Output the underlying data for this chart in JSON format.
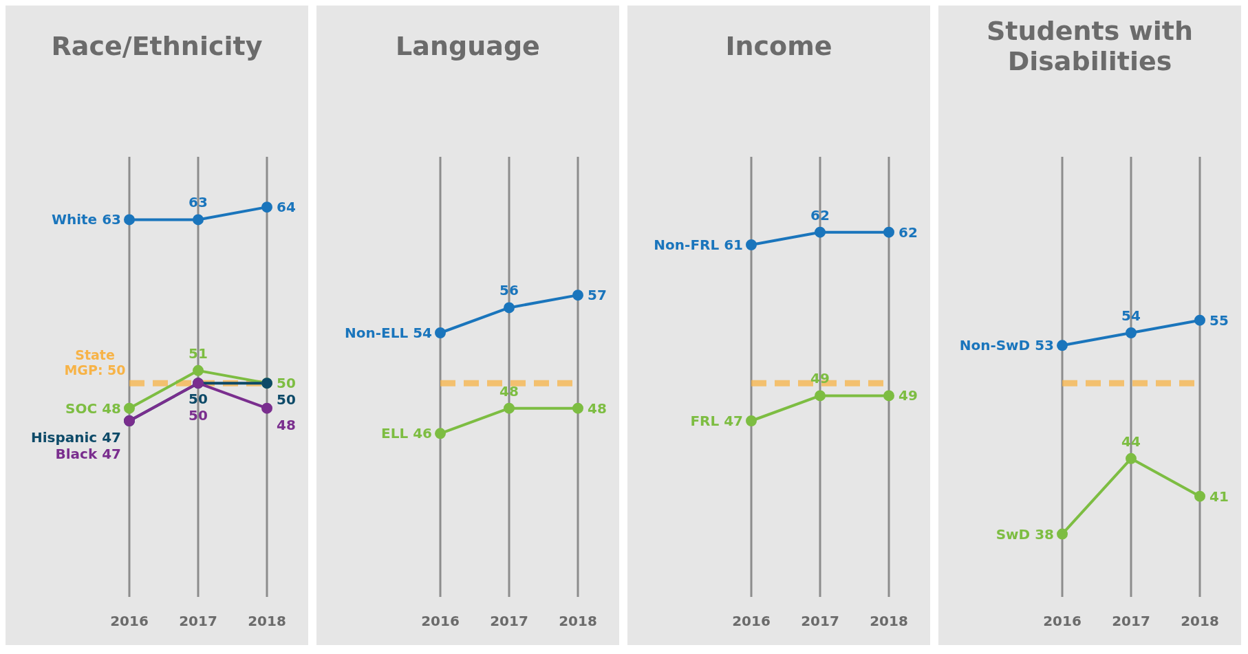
{
  "chart_data": [
    {
      "type": "line",
      "title": "Race/Ethnicity",
      "categories": [
        "2016",
        "2017",
        "2018"
      ],
      "data_labels": true,
      "grid": "x",
      "marker": "circle",
      "line_style": "solid",
      "ref_lines": [
        {
          "axis": "y",
          "value": 50,
          "label": "State MGP: 50",
          "color": "#f7b347",
          "line_style": "dashed"
        }
      ],
      "series": [
        {
          "name": "White",
          "color": "#1a75bc",
          "values": [
            63,
            63,
            64
          ]
        },
        {
          "name": "SOC",
          "color": "#7dbd42",
          "values": [
            48,
            51,
            50
          ]
        },
        {
          "name": "Hispanic",
          "color": "#0d4a68",
          "values": [
            47,
            50,
            50
          ]
        },
        {
          "name": "Black",
          "color": "#7a2e8e",
          "values": [
            47,
            50,
            48
          ]
        }
      ]
    },
    {
      "type": "line",
      "title": "Language",
      "categories": [
        "2016",
        "2017",
        "2018"
      ],
      "data_labels": true,
      "grid": "x",
      "marker": "circle",
      "line_style": "solid",
      "ref_lines": [
        {
          "axis": "y",
          "value": 50,
          "label": null,
          "color": "#f7b347",
          "line_style": "dashed"
        }
      ],
      "series": [
        {
          "name": "Non-ELL",
          "color": "#1a75bc",
          "values": [
            54,
            56,
            57
          ]
        },
        {
          "name": "ELL",
          "color": "#7dbd42",
          "values": [
            46,
            48,
            48
          ]
        }
      ]
    },
    {
      "type": "line",
      "title": "Income",
      "categories": [
        "2016",
        "2017",
        "2018"
      ],
      "data_labels": true,
      "grid": "x",
      "marker": "circle",
      "line_style": "solid",
      "ref_lines": [
        {
          "axis": "y",
          "value": 50,
          "label": null,
          "color": "#f7b347",
          "line_style": "dashed"
        }
      ],
      "series": [
        {
          "name": "Non-FRL",
          "color": "#1a75bc",
          "values": [
            61,
            62,
            62
          ]
        },
        {
          "name": "FRL",
          "color": "#7dbd42",
          "values": [
            47,
            49,
            49
          ]
        }
      ]
    },
    {
      "type": "line",
      "title": "Students with Disabilities",
      "categories": [
        "2016",
        "2017",
        "2018"
      ],
      "data_labels": true,
      "grid": "x",
      "marker": "circle",
      "line_style": "solid",
      "ref_lines": [
        {
          "axis": "y",
          "value": 50,
          "label": null,
          "color": "#f7b347",
          "line_style": "dashed"
        }
      ],
      "series": [
        {
          "name": "Non-SwD",
          "color": "#1a75bc",
          "values": [
            53,
            54,
            55
          ]
        },
        {
          "name": "SwD",
          "color": "#7dbd42",
          "values": [
            38,
            44,
            41
          ]
        }
      ]
    }
  ]
}
